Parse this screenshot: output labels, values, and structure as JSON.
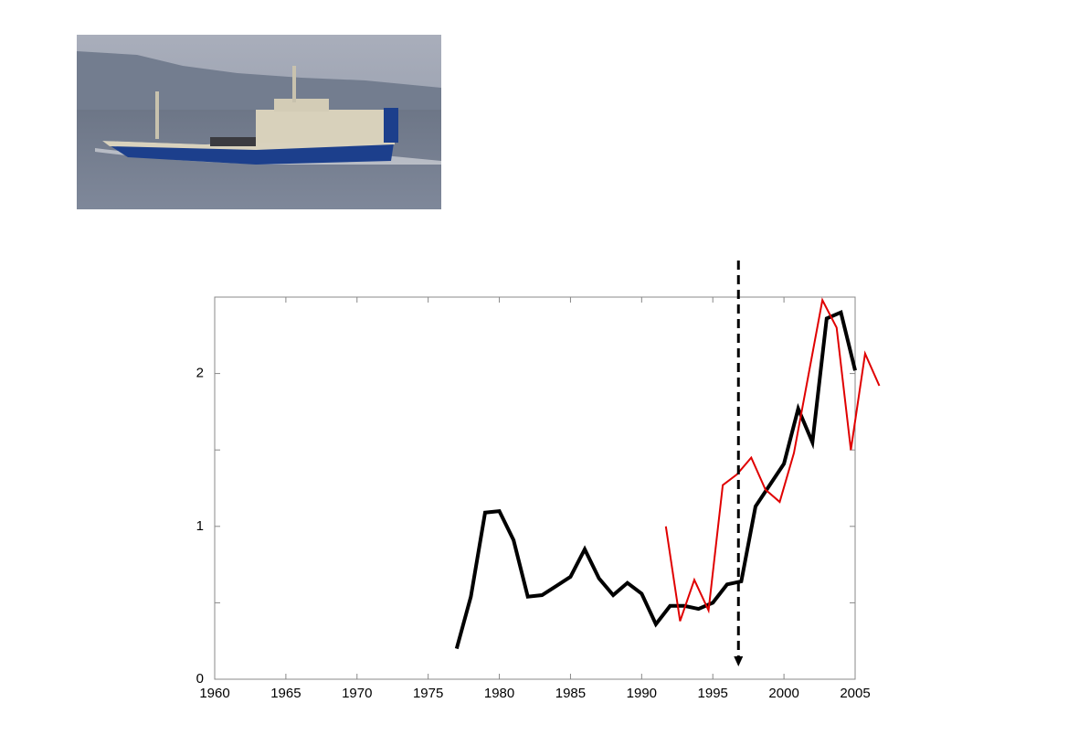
{
  "chart_data": {
    "type": "line",
    "xlim": [
      1960,
      2005
    ],
    "xticks": [
      1960,
      1965,
      1970,
      1975,
      1980,
      1985,
      1990,
      1995,
      2000,
      2005
    ],
    "ylim": [
      0,
      2.5
    ],
    "yticks": [
      0,
      1,
      2
    ],
    "yminor_ticks": [
      0.5,
      1.5
    ],
    "vline": {
      "x": 1996.8,
      "color": "#000000"
    },
    "series": [
      {
        "color": "#000000",
        "x": [
          1977,
          1978,
          1979,
          1980,
          1981,
          1982,
          1983,
          1984,
          1985,
          1986,
          1987,
          1988,
          1989,
          1990,
          1991,
          1992,
          1993,
          1994,
          1995,
          1996,
          1997,
          1998,
          1999,
          2000,
          2001,
          2002,
          2003,
          2004,
          2005
        ],
        "values": [
          0.2,
          0.54,
          1.09,
          1.1,
          0.91,
          0.54,
          0.55,
          0.61,
          0.67,
          0.85,
          0.66,
          0.55,
          0.63,
          0.56,
          0.36,
          0.48,
          0.48,
          0.46,
          0.5,
          0.62,
          0.64,
          1.13,
          1.27,
          1.41,
          1.77,
          1.55,
          2.36,
          2.4,
          2.02
        ]
      },
      {
        "color": "#e00000",
        "x": [
          1991.7,
          1992.7,
          1993.7,
          1994.7,
          1995.7,
          1996.7,
          1997.7,
          1998.7,
          1999.7,
          2000.7,
          2001.7,
          2002.7,
          2003.7,
          2004.7,
          2005.7,
          2006.7
        ],
        "values": [
          1.0,
          0.38,
          0.65,
          0.45,
          1.27,
          1.34,
          1.45,
          1.24,
          1.16,
          1.48,
          1.98,
          2.48,
          2.3,
          1.5,
          2.13,
          1.92
        ]
      }
    ]
  }
}
